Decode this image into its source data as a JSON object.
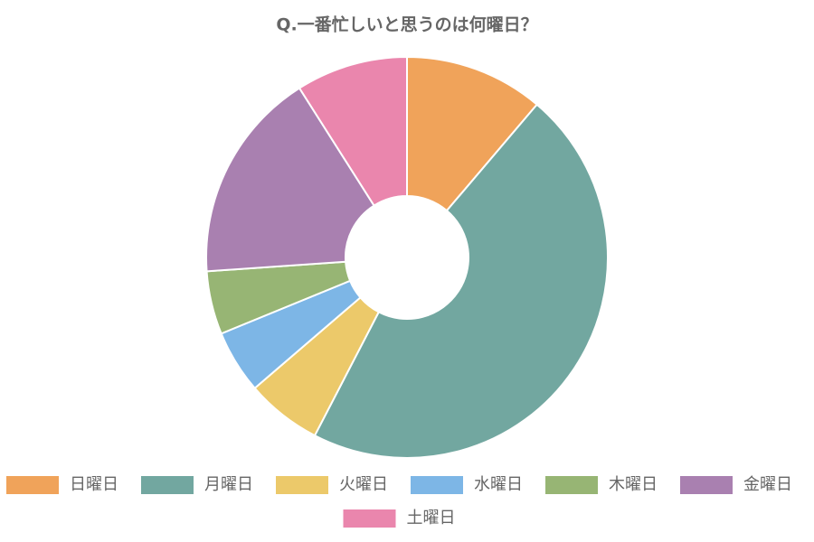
{
  "chart_data": {
    "type": "doughnut",
    "title": "Q.一番忙しいと思うのは何曜日？",
    "categories": [
      "日曜日",
      "月曜日",
      "火曜日",
      "水曜日",
      "木曜日",
      "金曜日",
      "土曜日"
    ],
    "values": [
      11.2,
      46.4,
      6.1,
      5.1,
      5.1,
      17.1,
      9.0
    ],
    "colors": [
      "#f0a35a",
      "#72a7a0",
      "#ecc96a",
      "#7db6e6",
      "#97b574",
      "#a980b0",
      "#ea86ad"
    ],
    "legend": "bottom"
  }
}
